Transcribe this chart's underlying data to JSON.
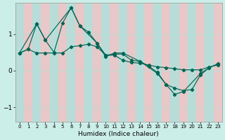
{
  "xlabel": "Humidex (Indice chaleur)",
  "bg_color": "#cceee8",
  "grid_color_light": "#b8ddd8",
  "grid_color_pink": "#e8c8c8",
  "line_color": "#006655",
  "xlim": [
    -0.5,
    23.5
  ],
  "ylim": [
    -1.4,
    1.85
  ],
  "yticks": [
    -1,
    0,
    1
  ],
  "xticks": [
    0,
    1,
    2,
    3,
    4,
    5,
    6,
    7,
    8,
    9,
    10,
    11,
    12,
    13,
    14,
    15,
    16,
    17,
    18,
    19,
    20,
    21,
    22,
    23
  ],
  "series1_x": [
    0,
    1,
    2,
    3,
    4,
    5,
    6,
    7,
    8,
    9,
    10,
    11,
    12,
    13,
    14,
    15,
    16,
    17,
    18,
    19,
    20,
    21,
    22,
    23
  ],
  "series1_y": [
    0.48,
    0.58,
    1.28,
    0.83,
    0.5,
    1.3,
    1.72,
    1.22,
    1.05,
    0.75,
    0.42,
    0.45,
    0.45,
    0.28,
    0.25,
    0.12,
    -0.05,
    -0.38,
    -0.48,
    -0.55,
    -0.52,
    -0.12,
    0.08,
    0.18
  ],
  "series2_x": [
    0,
    2,
    3,
    6,
    7,
    9,
    10,
    11,
    12,
    14,
    16,
    17,
    18,
    19,
    21,
    22,
    23
  ],
  "series2_y": [
    0.48,
    1.28,
    0.83,
    1.72,
    1.22,
    0.75,
    0.38,
    0.48,
    0.48,
    0.25,
    -0.08,
    -0.38,
    -0.65,
    -0.58,
    -0.08,
    0.08,
    0.18
  ],
  "series3_x": [
    0,
    1,
    2,
    3,
    4,
    5,
    6,
    7,
    8,
    9,
    10,
    11,
    12,
    13,
    14,
    15,
    16,
    17,
    18,
    19,
    20,
    21,
    22,
    23
  ],
  "series3_y": [
    0.48,
    0.58,
    0.48,
    0.48,
    0.48,
    0.48,
    0.65,
    0.68,
    0.72,
    0.65,
    0.42,
    0.42,
    0.28,
    0.22,
    0.2,
    0.15,
    0.1,
    0.08,
    0.05,
    0.02,
    0.02,
    0.02,
    0.1,
    0.15
  ]
}
